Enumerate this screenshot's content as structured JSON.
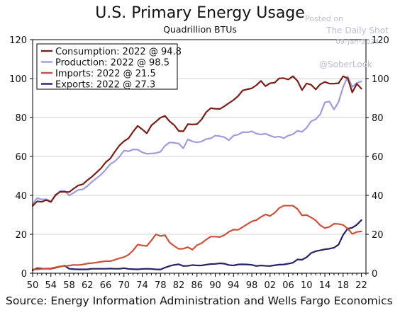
{
  "chart_data": {
    "type": "line",
    "title": "U.S. Primary Energy Usage",
    "subtitle": "Quadrillion BTUs",
    "xlabel": "",
    "ylabel": "",
    "x_tick_labels": [
      "50",
      "54",
      "58",
      "62",
      "66",
      "70",
      "74",
      "78",
      "82",
      "86",
      "90",
      "94",
      "98",
      "02",
      "06",
      "10",
      "14",
      "18",
      "22"
    ],
    "y_ticks": [
      0,
      20,
      40,
      60,
      80,
      100,
      120
    ],
    "ylim": [
      0,
      120
    ],
    "xlim": [
      1950,
      2023
    ],
    "grid": true,
    "legend_position": "top-left",
    "watermark": [
      "Posted on",
      "The Daily Shot",
      "09-Jan-2024",
      "@SoberLook"
    ],
    "source": "Source: Energy Information Administration and Wells Fargo Economics",
    "x": [
      1950,
      1951,
      1952,
      1953,
      1954,
      1955,
      1956,
      1957,
      1958,
      1959,
      1960,
      1961,
      1962,
      1963,
      1964,
      1965,
      1966,
      1967,
      1968,
      1969,
      1970,
      1971,
      1972,
      1973,
      1974,
      1975,
      1976,
      1977,
      1978,
      1979,
      1980,
      1981,
      1982,
      1983,
      1984,
      1985,
      1986,
      1987,
      1988,
      1989,
      1990,
      1991,
      1992,
      1993,
      1994,
      1995,
      1996,
      1997,
      1998,
      1999,
      2000,
      2001,
      2002,
      2003,
      2004,
      2005,
      2006,
      2007,
      2008,
      2009,
      2010,
      2011,
      2012,
      2013,
      2014,
      2015,
      2016,
      2017,
      2018,
      2019,
      2020,
      2021,
      2022
    ],
    "series": [
      {
        "name": "Consumption: 2022 @ 94.8",
        "color": "#7a1f17",
        "values": [
          34.6,
          36.9,
          36.7,
          37.6,
          36.6,
          40.2,
          41.8,
          41.8,
          41.7,
          43.5,
          45.1,
          45.7,
          47.8,
          49.6,
          51.8,
          54.0,
          57.0,
          58.9,
          62.4,
          65.6,
          67.8,
          69.3,
          72.7,
          75.7,
          73.9,
          71.9,
          75.9,
          77.9,
          79.9,
          80.8,
          78.0,
          76.1,
          73.1,
          72.9,
          76.6,
          76.4,
          76.6,
          79.0,
          82.7,
          84.8,
          84.5,
          84.4,
          85.8,
          87.4,
          89.0,
          91.0,
          93.9,
          94.5,
          95.0,
          96.6,
          98.8,
          96.1,
          97.6,
          97.9,
          100.1,
          100.2,
          99.5,
          101.2,
          98.8,
          94.1,
          97.5,
          96.8,
          94.4,
          97.1,
          98.3,
          97.4,
          97.4,
          97.6,
          101.2,
          100.2,
          92.9,
          97.3,
          94.8
        ]
      },
      {
        "name": "Production: 2022 @ 98.5",
        "color": "#a19bdc",
        "values": [
          35.5,
          38.6,
          37.9,
          38.0,
          37.0,
          39.7,
          42.2,
          42.4,
          39.9,
          41.4,
          42.8,
          43.1,
          44.8,
          47.0,
          48.8,
          50.7,
          53.2,
          56.0,
          57.5,
          59.8,
          63.0,
          62.6,
          63.6,
          63.5,
          62.1,
          61.4,
          61.5,
          61.7,
          62.4,
          65.5,
          67.2,
          67.0,
          66.6,
          64.2,
          68.8,
          67.7,
          67.2,
          67.7,
          68.9,
          69.3,
          70.7,
          70.4,
          69.9,
          68.3,
          70.7,
          71.2,
          72.5,
          72.4,
          72.9,
          71.7,
          71.3,
          71.7,
          70.7,
          69.9,
          70.2,
          69.4,
          70.7,
          71.4,
          73.2,
          72.6,
          74.7,
          78.1,
          79.1,
          81.7,
          87.8,
          88.2,
          84.1,
          88.0,
          95.7,
          101.0,
          95.7,
          97.8,
          98.5
        ]
      },
      {
        "name": "Imports: 2022 @ 21.5",
        "color": "#c8523a",
        "values": [
          1.9,
          2.0,
          2.2,
          2.4,
          2.5,
          3.0,
          3.5,
          3.7,
          3.9,
          4.3,
          4.2,
          4.5,
          5.0,
          5.2,
          5.5,
          5.9,
          6.2,
          6.2,
          6.9,
          7.7,
          8.3,
          9.5,
          11.7,
          14.7,
          14.3,
          14.0,
          16.8,
          20.0,
          19.1,
          19.5,
          15.8,
          14.0,
          12.5,
          12.6,
          13.4,
          12.1,
          14.4,
          15.4,
          17.3,
          18.8,
          18.8,
          18.6,
          19.6,
          21.3,
          22.4,
          22.3,
          23.7,
          25.2,
          26.6,
          27.3,
          28.9,
          30.2,
          29.4,
          31.0,
          33.5,
          34.7,
          34.7,
          34.7,
          33.0,
          29.7,
          29.9,
          28.6,
          27.1,
          24.6,
          23.2,
          23.8,
          25.4,
          25.3,
          24.8,
          22.9,
          20.2,
          21.2,
          21.5
        ]
      },
      {
        "name": "Exports: 2022 @ 27.3",
        "color": "#232366",
        "values": [
          1.5,
          2.6,
          2.4,
          2.3,
          2.3,
          2.8,
          3.4,
          3.9,
          2.3,
          2.1,
          2.0,
          2.0,
          2.0,
          2.3,
          2.3,
          2.3,
          2.3,
          2.4,
          2.3,
          2.3,
          2.6,
          2.2,
          2.1,
          2.0,
          2.2,
          2.3,
          2.2,
          2.0,
          1.9,
          2.9,
          3.7,
          4.3,
          4.6,
          3.7,
          3.8,
          4.2,
          4.0,
          4.0,
          4.4,
          4.7,
          4.8,
          5.1,
          4.9,
          4.2,
          4.0,
          4.5,
          4.6,
          4.5,
          4.3,
          3.7,
          4.0,
          3.8,
          3.7,
          4.1,
          4.4,
          4.5,
          4.9,
          5.4,
          7.1,
          6.9,
          8.2,
          10.4,
          11.3,
          11.8,
          12.3,
          12.6,
          13.1,
          14.7,
          19.7,
          22.9,
          23.4,
          24.9,
          27.3
        ]
      }
    ]
  }
}
